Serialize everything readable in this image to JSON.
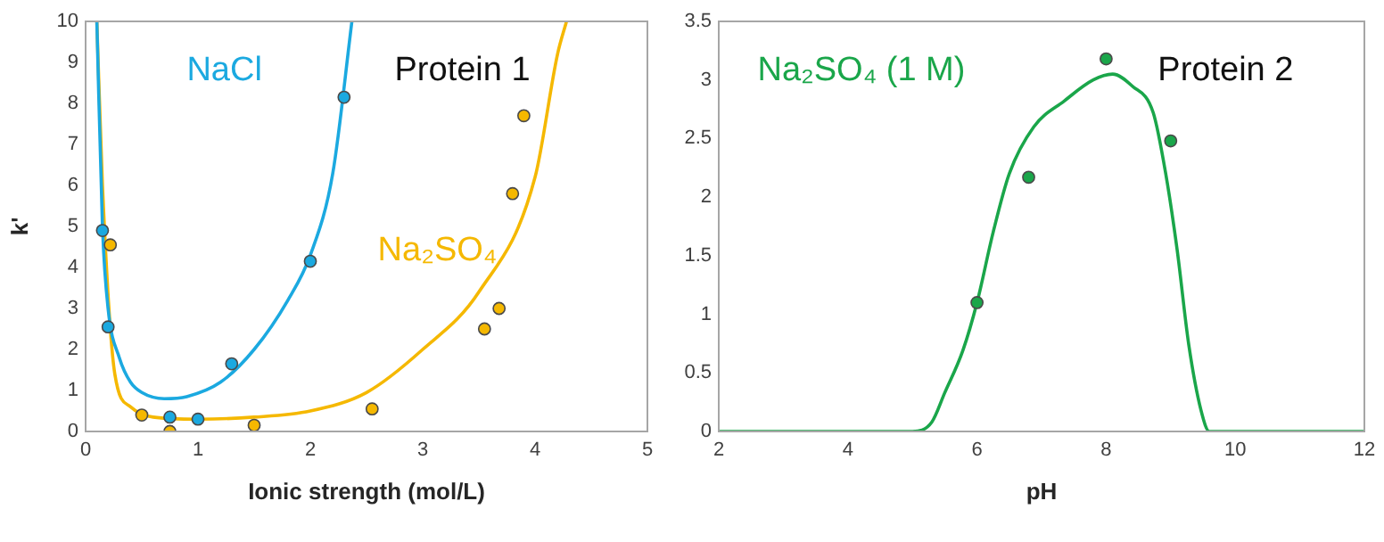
{
  "chart_data": [
    {
      "type": "scatter",
      "xlabel": "Ionic strength (mol/L)",
      "ylabel": "k'",
      "xlim": [
        0,
        5
      ],
      "ylim": [
        0,
        10
      ],
      "xticks": [
        0,
        1,
        2,
        3,
        4,
        5
      ],
      "yticks": [
        0,
        1,
        2,
        3,
        4,
        5,
        6,
        7,
        8,
        9,
        10
      ],
      "marker": "circle",
      "annotations": [
        "Protein 1"
      ],
      "series": [
        {
          "name": "NaCl",
          "type": "scatter",
          "color": "#1ba9e0",
          "x": [
            0.15,
            0.2,
            0.75,
            1.0,
            1.3,
            2.0,
            2.3
          ],
          "values": [
            4.9,
            2.55,
            0.35,
            0.3,
            1.65,
            4.15,
            8.15
          ]
        },
        {
          "type": "line",
          "marker": "none",
          "color": "#1ba9e0",
          "x": [
            0.1,
            0.15,
            0.2,
            0.3,
            0.4,
            0.5,
            0.7,
            0.9,
            1.2,
            1.5,
            1.8,
            2.0,
            2.2,
            2.37
          ],
          "values": [
            10,
            5,
            3,
            1.8,
            1.2,
            0.95,
            0.8,
            0.85,
            1.2,
            2.0,
            3.2,
            4.3,
            6.3,
            10
          ]
        },
        {
          "name": "Na₂SO₄",
          "type": "scatter",
          "color": "#f5b800",
          "x": [
            0.22,
            0.5,
            0.75,
            1.5,
            2.55,
            3.55,
            3.68,
            3.8,
            3.9
          ],
          "values": [
            4.55,
            0.4,
            0.0,
            0.15,
            0.55,
            2.5,
            3.0,
            5.8,
            7.7
          ]
        },
        {
          "type": "line",
          "marker": "none",
          "color": "#f5b800",
          "x": [
            0.1,
            0.15,
            0.26,
            0.4,
            0.6,
            1.0,
            1.5,
            2.0,
            2.5,
            3.0,
            3.5,
            4.0,
            4.2,
            4.28
          ],
          "values": [
            10,
            6,
            1.4,
            0.6,
            0.35,
            0.3,
            0.35,
            0.5,
            0.95,
            2.0,
            3.4,
            6.2,
            9.2,
            10
          ]
        }
      ]
    },
    {
      "type": "scatter",
      "xlabel": "pH",
      "xlim": [
        2,
        12
      ],
      "ylim": [
        0,
        3.5
      ],
      "xticks": [
        2,
        4,
        6,
        8,
        10,
        12
      ],
      "yticks": [
        0,
        0.5,
        1,
        1.5,
        2,
        2.5,
        3,
        3.5
      ],
      "marker": "circle",
      "annotations": [
        "Protein 2"
      ],
      "series": [
        {
          "name": "Na₂SO₄ (1 M)",
          "type": "scatter",
          "color": "#1aa64a",
          "x": [
            6,
            6.8,
            8,
            9
          ],
          "values": [
            1.1,
            2.17,
            3.18,
            2.48
          ]
        },
        {
          "type": "line",
          "marker": "none",
          "color": "#1aa64a",
          "x": [
            2,
            5,
            5.3,
            5.5,
            5.78,
            6,
            6.25,
            6.5,
            6.88,
            7.35,
            7.8,
            8.1,
            8.4,
            8.73,
            8.92,
            9.1,
            9.28,
            9.47,
            9.6,
            12
          ],
          "values": [
            0,
            0,
            0.08,
            0.33,
            0.69,
            1.1,
            1.7,
            2.2,
            2.6,
            2.82,
            3.0,
            3.05,
            2.95,
            2.72,
            2.21,
            1.55,
            0.74,
            0.18,
            0,
            0
          ]
        }
      ]
    }
  ]
}
